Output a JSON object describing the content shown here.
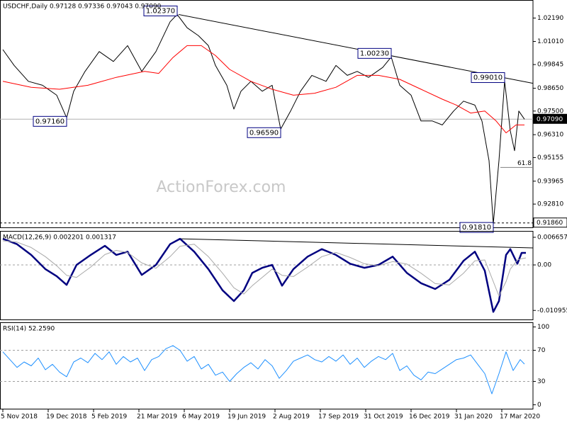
{
  "chart_data": [
    {
      "type": "line",
      "title": "USDCHF,Daily  0.97128 0.97336 0.97043 0.97090",
      "watermark": "ActionForex.com",
      "xlim": [
        -2,
        374
      ],
      "ylim": [
        0.916,
        1.031
      ],
      "yticks": [
        {
          "value": 1.0219,
          "label": "1.02190"
        },
        {
          "value": 1.0101,
          "label": "1.01010"
        },
        0.99845,
        {
          "value": 0.9865,
          "label": "0.98650"
        },
        {
          "value": 0.975,
          "label": "0.97500"
        },
        {
          "value": 0.9631,
          "label": "0.96310"
        },
        0.95155,
        0.93965,
        {
          "value": 0.9281,
          "label": "0.92810"
        }
      ],
      "series": [
        {
          "color": "#000000",
          "width": 1,
          "x": [
            0,
            8,
            18,
            28,
            38,
            45,
            50,
            58,
            68,
            78,
            88,
            98,
            108,
            118,
            123,
            130,
            138,
            145,
            150,
            158,
            163,
            168,
            175,
            183,
            190,
            196,
            203,
            210,
            218,
            228,
            235,
            243,
            250,
            258,
            268,
            274,
            280,
            288,
            295,
            303,
            310,
            318,
            325,
            333,
            338,
            343,
            346,
            350,
            354,
            358,
            361,
            364,
            368
          ],
          "values": [
            1.006,
            0.998,
            0.99,
            0.988,
            0.983,
            0.9716,
            0.985,
            0.995,
            1.005,
            1.0,
            1.008,
            0.995,
            1.005,
            1.02,
            1.0237,
            1.017,
            1.013,
            1.008,
            0.998,
            0.988,
            0.976,
            0.985,
            0.99,
            0.985,
            0.988,
            0.9659,
            0.975,
            0.985,
            0.993,
            0.99,
            0.998,
            0.993,
            0.995,
            0.992,
            0.997,
            1.0023,
            0.988,
            0.983,
            0.97,
            0.97,
            0.968,
            0.975,
            0.98,
            0.978,
            0.97,
            0.95,
            0.9181,
            0.95,
            0.9901,
            0.965,
            0.955,
            0.975,
            0.9709
          ]
        },
        {
          "color": "#ff0000",
          "width": 1,
          "x": [
            0,
            20,
            40,
            60,
            80,
            100,
            110,
            120,
            130,
            140,
            150,
            160,
            175,
            190,
            205,
            220,
            235,
            250,
            265,
            280,
            295,
            310,
            320,
            330,
            340,
            348,
            355,
            362,
            368
          ],
          "values": [
            0.99,
            0.987,
            0.986,
            0.988,
            0.992,
            0.995,
            0.994,
            1.002,
            1.008,
            1.008,
            1.003,
            0.996,
            0.99,
            0.986,
            0.983,
            0.984,
            0.987,
            0.993,
            0.993,
            0.991,
            0.986,
            0.981,
            0.978,
            0.974,
            0.975,
            0.97,
            0.964,
            0.968,
            0.968
          ]
        }
      ],
      "trendlines": [
        {
          "x": [
            124,
            374
          ],
          "values": [
            1.0237,
            0.989
          ]
        }
      ],
      "hlines": [
        {
          "value": 0.9709,
          "label": "0.97090",
          "dashed": false
        },
        {
          "value": 0.9186,
          "label": "0.91860",
          "dashed": true
        }
      ],
      "fib": {
        "label": "61.8",
        "value": 0.9466,
        "x": [
          351,
          374
        ]
      },
      "annotations": [
        {
          "label": "1.02370",
          "x": 123,
          "value": 1.0237
        },
        {
          "label": "0.97160",
          "x": 45,
          "value": 0.9716
        },
        {
          "label": "0.96590",
          "x": 196,
          "value": 0.9659
        },
        {
          "label": "1.00230",
          "x": 274,
          "value": 1.0023
        },
        {
          "label": "0.99010",
          "x": 354,
          "value": 0.9901
        },
        {
          "label": "0.91810",
          "x": 346,
          "value": 0.9181
        }
      ]
    },
    {
      "type": "line",
      "title": "MACD(12,26,9) 0.002201 0.001317",
      "xlim": [
        -2,
        374
      ],
      "ylim": [
        -0.0133,
        0.00819
      ],
      "yticks": [
        0.006657,
        {
          "value": 0,
          "label": "0.00"
        },
        -0.010955
      ],
      "levels": [
        0
      ],
      "series": [
        {
          "color": "#000080",
          "width": 2.5,
          "x": [
            0,
            10,
            20,
            30,
            38,
            45,
            52,
            62,
            72,
            80,
            88,
            98,
            108,
            118,
            125,
            135,
            145,
            155,
            163,
            170,
            176,
            183,
            190,
            197,
            205,
            215,
            225,
            235,
            245,
            255,
            265,
            275,
            285,
            295,
            305,
            315,
            325,
            333,
            340,
            346,
            350,
            355,
            358,
            363,
            366,
            369
          ],
          "values": [
            0.0063,
            0.005,
            0.0024,
            -0.001,
            -0.0027,
            -0.0048,
            0,
            0.0024,
            0.0046,
            0.0024,
            0.0032,
            -0.0024,
            0,
            0.005,
            0.0063,
            0.0032,
            -0.001,
            -0.0061,
            -0.0087,
            -0.0061,
            -0.0019,
            -0.0007,
            0,
            -0.005,
            -0.001,
            0.002,
            0.0038,
            0.0024,
            0.0003,
            -0.0007,
            0,
            0.002,
            -0.0019,
            -0.0044,
            -0.0058,
            -0.0036,
            0.001,
            0.0032,
            -0.0014,
            -0.0113,
            -0.0087,
            0.0024,
            0.0038,
            0.0003,
            0.0029,
            0.0029
          ]
        },
        {
          "color": "#a9a9a9",
          "width": 1,
          "x": [
            0,
            10,
            20,
            30,
            38,
            45,
            52,
            62,
            72,
            80,
            88,
            98,
            108,
            118,
            125,
            135,
            145,
            155,
            163,
            170,
            176,
            183,
            190,
            197,
            205,
            215,
            225,
            235,
            245,
            255,
            265,
            275,
            285,
            295,
            305,
            315,
            325,
            333,
            340,
            346,
            350,
            355,
            358,
            363,
            366,
            369
          ],
          "values": [
            0.0058,
            0.0055,
            0.0042,
            0.002,
            -0.0002,
            -0.0025,
            -0.003,
            -0.0005,
            0.0025,
            0.0035,
            0.003,
            0.0005,
            -0.0008,
            0.002,
            0.0045,
            0.005,
            0.002,
            -0.002,
            -0.0055,
            -0.007,
            -0.005,
            -0.003,
            -0.001,
            -0.0025,
            -0.0028,
            -0.0005,
            0.002,
            0.003,
            0.0018,
            0.0003,
            -0.0002,
            0.0008,
            0.0002,
            -0.002,
            -0.0045,
            -0.0048,
            -0.002,
            0.001,
            0.0012,
            -0.004,
            -0.0075,
            -0.004,
            -0.001,
            0.0012,
            0.0015,
            0.0017
          ]
        }
      ],
      "trendlines": [
        {
          "x": [
            124,
            374
          ],
          "values": [
            0.0063,
            0.0041
          ]
        }
      ]
    },
    {
      "type": "line",
      "title": "RSI(14) 52.2590",
      "xlim": [
        -2,
        374
      ],
      "ylim": [
        -6,
        106
      ],
      "yticks": [
        100,
        70,
        30,
        0
      ],
      "levels": [
        70,
        30
      ],
      "xticks": [
        {
          "value": 0,
          "label": "5 Nov 2018"
        },
        {
          "value": 32,
          "label": "19 Dec 2018"
        },
        {
          "value": 64,
          "label": "5 Feb 2019"
        },
        {
          "value": 96,
          "label": "21 Mar 2019"
        },
        {
          "value": 128,
          "label": "6 May 2019"
        },
        {
          "value": 160,
          "label": "19 Jun 2019"
        },
        {
          "value": 192,
          "label": "2 Aug 2019"
        },
        {
          "value": 224,
          "label": "17 Sep 2019"
        },
        {
          "value": 256,
          "label": "31 Oct 2019"
        },
        {
          "value": 288,
          "label": "16 Dec 2019"
        },
        {
          "value": 320,
          "label": "31 Jan 2020"
        },
        {
          "value": 352,
          "label": "17 Mar 2020"
        }
      ],
      "series": [
        {
          "color": "#1e90ff",
          "width": 1,
          "x": [
            0,
            5,
            10,
            15,
            20,
            25,
            30,
            35,
            40,
            45,
            50,
            55,
            60,
            65,
            70,
            75,
            80,
            85,
            90,
            95,
            100,
            105,
            110,
            115,
            120,
            125,
            130,
            135,
            140,
            145,
            150,
            155,
            160,
            165,
            170,
            175,
            180,
            185,
            190,
            195,
            200,
            205,
            210,
            215,
            220,
            225,
            230,
            235,
            240,
            245,
            250,
            255,
            260,
            265,
            270,
            275,
            280,
            285,
            290,
            295,
            300,
            305,
            310,
            315,
            320,
            325,
            330,
            335,
            340,
            345,
            350,
            355,
            360,
            365,
            368
          ],
          "values": [
            68,
            58,
            48,
            55,
            50,
            60,
            45,
            52,
            42,
            36,
            55,
            60,
            54,
            66,
            58,
            68,
            52,
            62,
            55,
            60,
            44,
            58,
            62,
            72,
            76,
            70,
            56,
            62,
            46,
            52,
            38,
            42,
            30,
            40,
            48,
            54,
            46,
            58,
            50,
            34,
            44,
            56,
            60,
            64,
            58,
            55,
            62,
            56,
            64,
            52,
            60,
            48,
            56,
            62,
            58,
            66,
            44,
            50,
            38,
            32,
            42,
            40,
            46,
            52,
            58,
            60,
            64,
            52,
            40,
            14,
            40,
            68,
            44,
            58,
            52.259
          ]
        }
      ]
    }
  ]
}
